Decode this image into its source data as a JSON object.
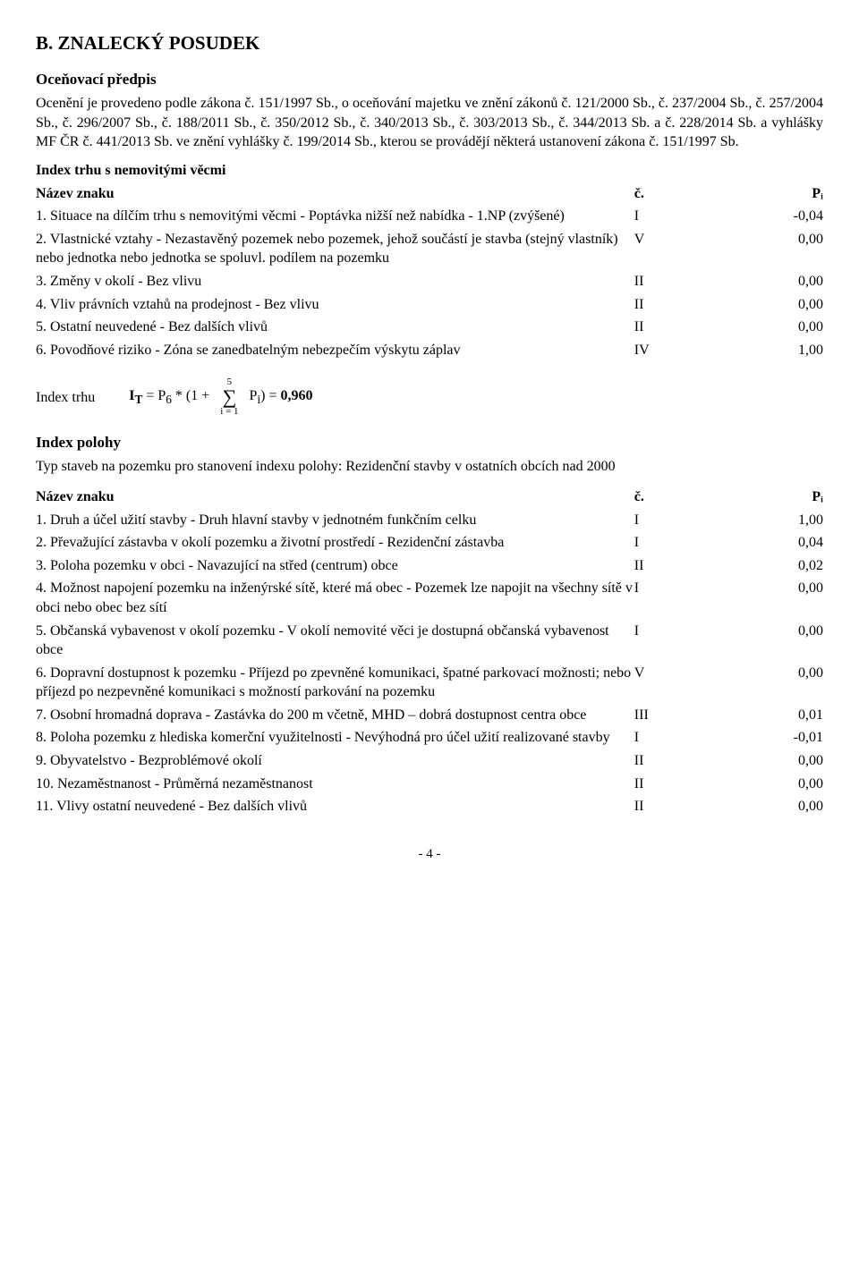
{
  "page": {
    "title": "B. ZNALECKÝ POSUDEK",
    "sub1": "Oceňovací předpis",
    "intro": "Ocenění je provedeno podle zákona č. 151/1997 Sb., o oceňování majetku ve znění zákonů č. 121/2000 Sb., č. 237/2004 Sb., č. 257/2004 Sb., č. 296/2007 Sb., č. 188/2011 Sb., č. 350/2012 Sb., č. 340/2013 Sb., č. 303/2013 Sb., č. 344/2013 Sb. a č. 228/2014 Sb. a vyhlášky MF ČR č. 441/2013 Sb. ve znění vyhlášky č. 199/2014 Sb., kterou se provádějí některá ustanovení zákona č. 151/1997 Sb.",
    "section1": "Index trhu s nemovitými věcmi",
    "colLabel": "Název znaku",
    "colC": "č.",
    "colP": "Pᵢ",
    "t1": [
      {
        "text": "1. Situace na dílčím trhu s nemovitými věcmi - Poptávka nižší než nabídka - 1.NP (zvýšené)",
        "c": "I",
        "p": "-0,04"
      },
      {
        "text": "2. Vlastnické vztahy - Nezastavěný pozemek nebo pozemek, jehož součástí je stavba (stejný vlastník) nebo jednotka nebo jednotka se spoluvl. podílem na pozemku",
        "c": "V",
        "p": "0,00"
      },
      {
        "text": "3. Změny v okolí - Bez vlivu",
        "c": "II",
        "p": "0,00"
      },
      {
        "text": "4. Vliv právních vztahů na prodejnost - Bez vlivu",
        "c": "II",
        "p": "0,00"
      },
      {
        "text": "5. Ostatní neuvedené - Bez dalších vlivů",
        "c": "II",
        "p": "0,00"
      },
      {
        "text": "6. Povodňové riziko - Zóna se zanedbatelným nebezpečím výskytu záplav",
        "c": "IV",
        "p": "1,00"
      }
    ],
    "formulaLabel": "Index trhu",
    "formulaPre": "I",
    "formulaSub": "T",
    "formulaMid1": " = P",
    "formulaSub2": "6",
    "formulaMid2": " * (1 + ",
    "sumTop": "5",
    "sumBottom": "i = 1",
    "formulaMid3": " P",
    "formulaSub3": "i",
    "formulaEnd": ") = ",
    "formulaResult": "0,960",
    "section2": "Index polohy",
    "section2note": "Typ staveb na pozemku pro stanovení indexu polohy: Rezidenční stavby v ostatních obcích nad 2000",
    "t2": [
      {
        "text": "1. Druh a účel užití stavby - Druh hlavní stavby v jednotném funkčním celku",
        "c": "I",
        "p": "1,00"
      },
      {
        "text": "2. Převažující zástavba v okolí pozemku a životní prostředí - Rezidenční zástavba",
        "c": "I",
        "p": "0,04"
      },
      {
        "text": "3. Poloha pozemku v obci - Navazující na střed (centrum) obce",
        "c": "II",
        "p": "0,02"
      },
      {
        "text": "4. Možnost napojení pozemku na inženýrské sítě, které má obec - Pozemek lze napojit na všechny sítě v obci nebo obec bez sítí",
        "c": "I",
        "p": "0,00"
      },
      {
        "text": "5. Občanská vybavenost v okolí pozemku - V okolí nemovité věci je dostupná občanská vybavenost obce",
        "c": "I",
        "p": "0,00"
      },
      {
        "text": "6. Dopravní dostupnost k pozemku - Příjezd po zpevněné komunikaci, špatné parkovací možnosti; nebo příjezd po nezpevněné komunikaci s možností parkování na pozemku",
        "c": "V",
        "p": "0,00"
      },
      {
        "text": "7. Osobní hromadná doprava - Zastávka do 200 m včetně, MHD – dobrá dostupnost centra obce",
        "c": "III",
        "p": "0,01"
      },
      {
        "text": "8. Poloha pozemku z hlediska komerční využitelnosti - Nevýhodná pro účel užití realizované stavby",
        "c": "I",
        "p": "-0,01"
      },
      {
        "text": "9. Obyvatelstvo - Bezproblémové okolí",
        "c": "II",
        "p": "0,00"
      },
      {
        "text": "10. Nezaměstnanost - Průměrná nezaměstnanost",
        "c": "II",
        "p": "0,00"
      },
      {
        "text": "11. Vlivy ostatní neuvedené - Bez dalších vlivů",
        "c": "II",
        "p": "0,00"
      }
    ],
    "footer": "- 4 -"
  }
}
